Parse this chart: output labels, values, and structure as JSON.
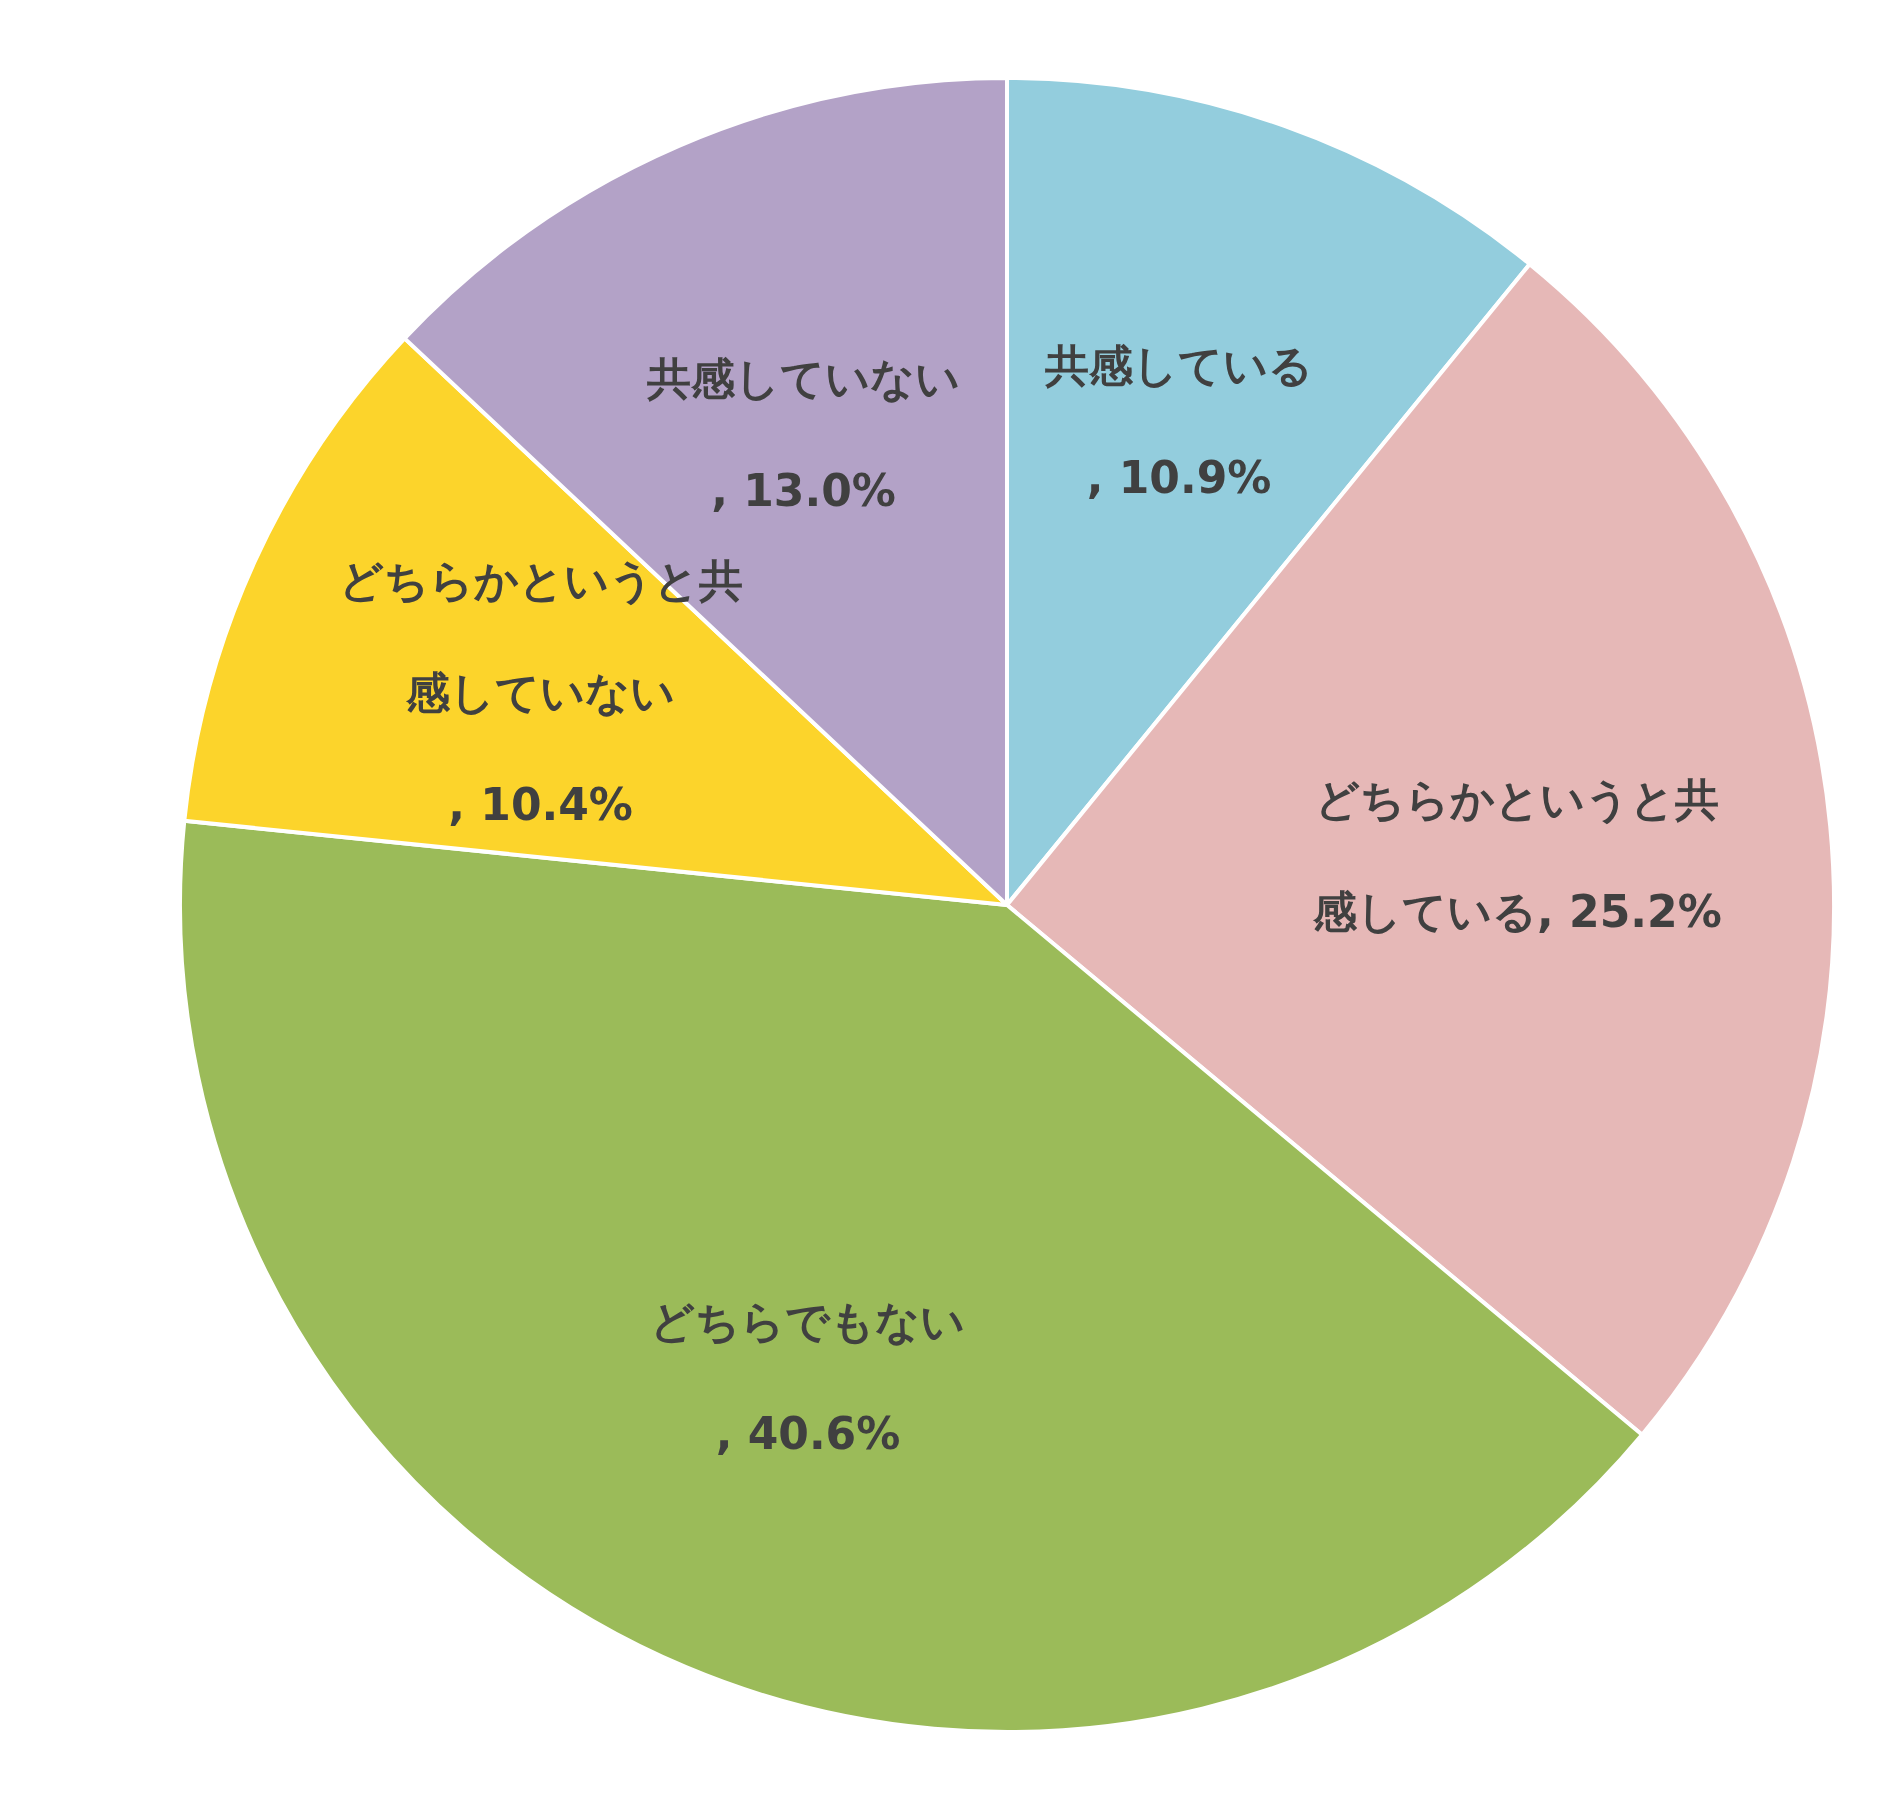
{
  "chart_data": {
    "type": "pie",
    "categories": [
      "共感している",
      "どちらかというと共感している",
      "どちらでもない",
      "どちらかというと共感していない",
      "共感していない"
    ],
    "values": [
      10.9,
      25.2,
      40.6,
      10.4,
      13.0
    ],
    "value_labels": [
      ", 10.9%",
      ", 25.2%",
      ", 40.6%",
      ", 10.4%",
      ", 13.0%"
    ],
    "colors": [
      "#93cddd",
      "#e6b8b7",
      "#9bbb59",
      "#fcd42b",
      "#b3a2c7"
    ]
  }
}
